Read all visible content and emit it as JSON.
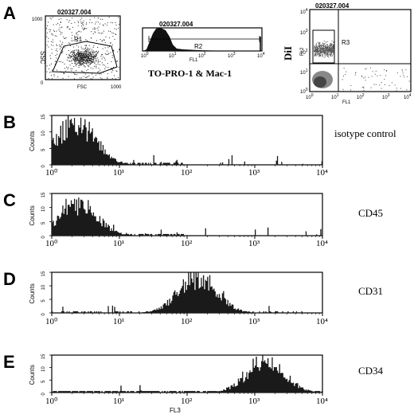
{
  "figure": {
    "panel_labels": [
      "A",
      "B",
      "C",
      "D",
      "E"
    ],
    "sample_id": "020327.004",
    "top_row": {
      "scatter": {
        "y_axis_label": "SSC",
        "x_axis_label": "FSC",
        "y_tick_top": "1000",
        "x_tick_right": "1000",
        "origin_tick": "0",
        "gate_label": "R1"
      },
      "histogram": {
        "x_axis_label": "FL1",
        "gate_label": "R2",
        "caption": "TO-PRO-1 & Mac-1"
      },
      "dot_plot": {
        "y_axis_label": "FL2",
        "x_axis_label": "FL1",
        "dye_label": "DiI",
        "gate_label": "R3"
      }
    },
    "histograms": [
      {
        "panel": "B",
        "marker": "isotype control",
        "y_axis_label": "Counts",
        "y_ticks": [
          "0",
          "5",
          "10",
          "15"
        ],
        "x_ticks": [
          "10⁰",
          "10¹",
          "10²",
          "10³",
          "10⁴"
        ],
        "x_axis_label": ""
      },
      {
        "panel": "C",
        "marker": "CD45",
        "y_axis_label": "Counts",
        "y_ticks": [
          "0",
          "5",
          "10",
          "15"
        ],
        "x_ticks": [
          "10⁰",
          "10¹",
          "10²",
          "10³",
          "10⁴"
        ],
        "x_axis_label": ""
      },
      {
        "panel": "D",
        "marker": "CD31",
        "y_axis_label": "Counts",
        "y_ticks": [
          "0",
          "5",
          "10",
          "15"
        ],
        "x_ticks": [
          "10⁰",
          "10¹",
          "10²",
          "10³",
          "10⁴"
        ],
        "x_axis_label": ""
      },
      {
        "panel": "E",
        "marker": "CD34",
        "y_axis_label": "Counts",
        "y_ticks": [
          "0",
          "5",
          "10",
          "15"
        ],
        "x_ticks": [
          "10⁰",
          "10¹",
          "10²",
          "10³",
          "10⁴"
        ],
        "x_axis_label": "FL3"
      }
    ]
  }
}
